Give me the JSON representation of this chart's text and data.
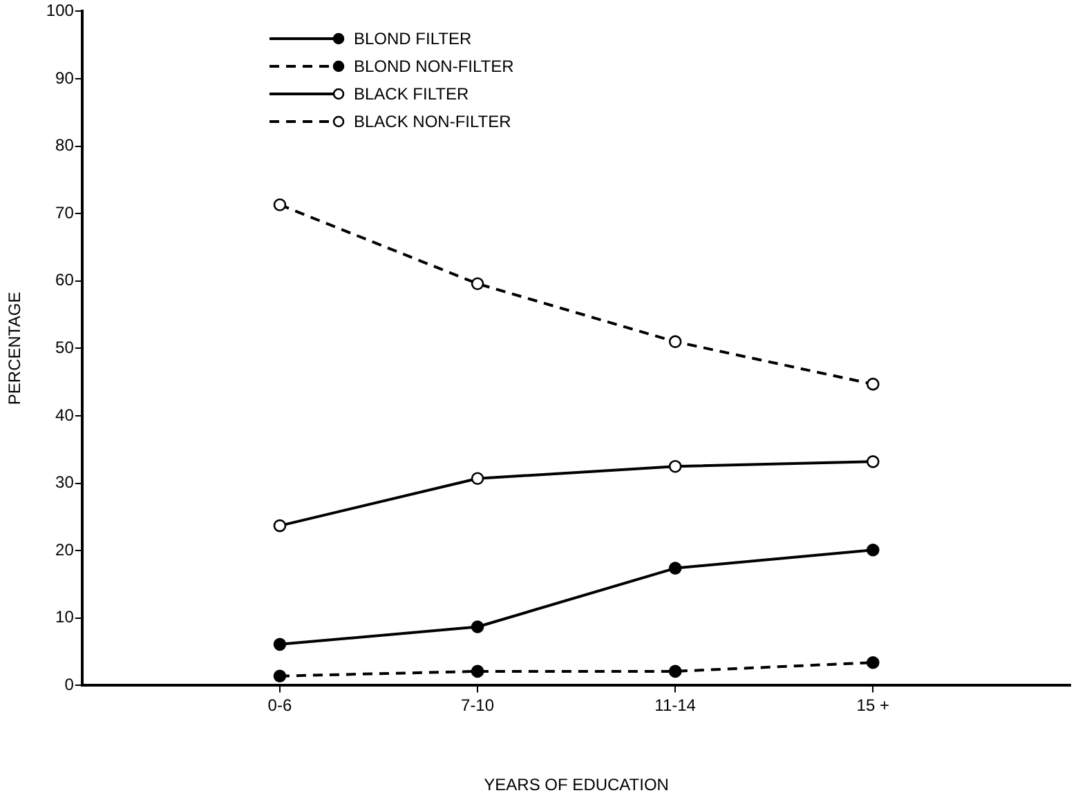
{
  "chart_data": {
    "type": "line",
    "xlabel": "YEARS OF EDUCATION",
    "ylabel": "PERCENTAGE",
    "categories": [
      "0-6",
      "7-10",
      "11-14",
      "15 +"
    ],
    "series": [
      {
        "name": "BLOND FILTER",
        "color": "#000000",
        "line_style": "solid",
        "values": [
          6.1,
          8.7,
          17.4,
          20.1
        ]
      },
      {
        "name": "BLOND NON-FILTER",
        "color": "#000000",
        "line_style": "dashed",
        "values": [
          1.4,
          2.1,
          2.1,
          3.4
        ]
      },
      {
        "name": "BLACK FILTER",
        "color": "#000000",
        "line_style": "solid",
        "values": [
          23.7,
          30.7,
          32.5,
          33.2
        ]
      },
      {
        "name": "BLACK NON-FILTER",
        "color": "#000000",
        "line_style": "dashed",
        "values": [
          71.3,
          59.6,
          51.0,
          44.7
        ]
      }
    ],
    "ylim": [
      0,
      100
    ],
    "yticks": [
      0,
      10,
      20,
      30,
      40,
      50,
      60,
      70,
      80,
      90,
      100
    ],
    "marker": "circle",
    "legend": "top left"
  }
}
